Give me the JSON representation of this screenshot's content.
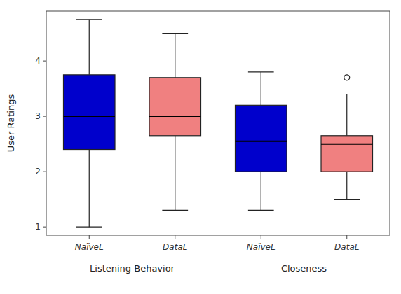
{
  "chart_data": {
    "type": "box",
    "ylabel": "User Ratings",
    "categories": [
      "NaïveL",
      "DataL",
      "NaïveL",
      "DataL"
    ],
    "groups": [
      "Listening Behavior",
      "Listening Behavior",
      "Closeness",
      "Closeness"
    ],
    "colors": [
      "#0000CC",
      "#F08080",
      "#0000CC",
      "#F08080"
    ],
    "whislo": [
      1.0,
      1.3,
      1.3,
      1.5
    ],
    "q1": [
      2.4,
      2.65,
      2.0,
      2.0
    ],
    "med": [
      3.0,
      3.0,
      2.55,
      2.5
    ],
    "q3": [
      3.75,
      3.7,
      3.2,
      2.65
    ],
    "whishi": [
      4.75,
      4.5,
      3.8,
      3.4
    ],
    "fliers": [
      [],
      [],
      [],
      [
        3.7
      ]
    ],
    "ylim": [
      0.85,
      4.9
    ],
    "yticks": [
      1,
      2,
      3,
      4
    ],
    "grid": false
  }
}
